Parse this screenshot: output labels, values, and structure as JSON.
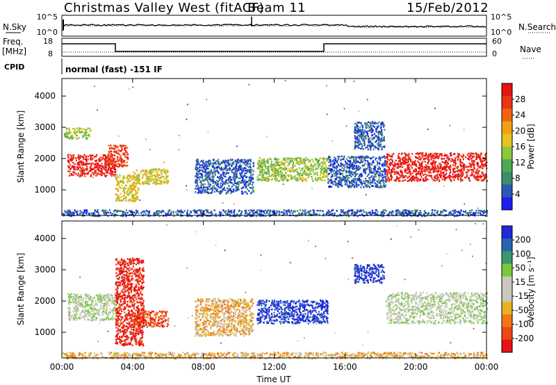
{
  "header": {
    "station": "Christmas Valley West (fitACF)",
    "beam": "Beam 11",
    "date": "15/Feb/2012"
  },
  "summary": {
    "nsky_label": "N.Sky",
    "nsky_ticks": [
      "10^5",
      "10^0"
    ],
    "nsearch_label": "N.Search",
    "nsearch_ticks": [
      "10^5",
      "10^0"
    ],
    "freq_label": "Freq.",
    "freq_unit": "[MHz]",
    "freq_ticks": [
      "18",
      "8"
    ],
    "nave_label": "Nave",
    "nave_ticks": [
      "60",
      "0"
    ],
    "cpid_label": "CPID",
    "cpid_value": "normal (fast) -151 IF"
  },
  "chart_data": [
    {
      "type": "heatmap",
      "name": "power-panel",
      "ylabel": "Slant Range [km]",
      "yticks": [
        1000,
        2000,
        3000,
        4000
      ],
      "ylim": [
        180,
        4560
      ],
      "colorbar": {
        "label": "Power [dB]",
        "ticks": [
          "4",
          "8",
          "12",
          "16",
          "20",
          "24",
          "28"
        ],
        "colors": [
          "#1e1ef0",
          "#2a5ab4",
          "#3c8c6e",
          "#50aa50",
          "#8cc83c",
          "#e6c31e",
          "#f5a014",
          "#f06414",
          "#ee3214",
          "#e61414"
        ]
      },
      "regions": [
        {
          "t0": 0.3,
          "t1": 3.0,
          "r0": 1450,
          "r1": 2150,
          "level": 9
        },
        {
          "t0": 0.1,
          "t1": 1.6,
          "r0": 2650,
          "r1": 3000,
          "level": 4
        },
        {
          "t0": 2.6,
          "t1": 3.7,
          "r0": 1750,
          "r1": 2450,
          "level": 8
        },
        {
          "t0": 3.0,
          "t1": 4.3,
          "r0": 650,
          "r1": 1500,
          "level": 5
        },
        {
          "t0": 4.0,
          "t1": 6.0,
          "r0": 1200,
          "r1": 1700,
          "level": 5
        },
        {
          "t0": 7.5,
          "t1": 10.8,
          "r0": 900,
          "r1": 2000,
          "level": 1
        },
        {
          "t0": 11.0,
          "t1": 15.0,
          "r0": 1300,
          "r1": 2050,
          "level": 4
        },
        {
          "t0": 15.0,
          "t1": 18.3,
          "r0": 1100,
          "r1": 2100,
          "level": 1
        },
        {
          "t0": 16.5,
          "t1": 18.2,
          "r0": 2300,
          "r1": 3200,
          "level": 1
        },
        {
          "t0": 18.3,
          "t1": 24.0,
          "r0": 1300,
          "r1": 2200,
          "level": 9
        },
        {
          "t0": 0.0,
          "t1": 24.0,
          "r0": 180,
          "r1": 380,
          "level": 1
        }
      ]
    },
    {
      "type": "heatmap",
      "name": "velocity-panel",
      "ylabel": "Slant Range [km]",
      "xlabel": "Time UT",
      "xticks": [
        "00:00",
        "04:00",
        "08:00",
        "12:00",
        "16:00",
        "20:00",
        "00:00"
      ],
      "xlim": [
        0,
        24
      ],
      "yticks": [
        1000,
        2000,
        3000,
        4000
      ],
      "ylim": [
        180,
        4560
      ],
      "colorbar": {
        "label": "Velocity [m s⁻¹]",
        "ticks": [
          "200",
          "100",
          "50",
          "15",
          "-15",
          "-50",
          "-100",
          "-200"
        ],
        "colors": [
          "#1e28dc",
          "#2a64b4",
          "#3c966e",
          "#78c83c",
          "#c8c8be",
          "#c8c8be",
          "#e6b41e",
          "#f07814",
          "#ee4614",
          "#e61414"
        ]
      },
      "regions": [
        {
          "t0": 0.3,
          "t1": 3.2,
          "r0": 1400,
          "r1": 2250,
          "level": 4
        },
        {
          "t0": 3.0,
          "t1": 4.6,
          "r0": 600,
          "r1": 3400,
          "level": 9
        },
        {
          "t0": 4.0,
          "t1": 6.0,
          "r0": 1200,
          "r1": 1700,
          "level": 8
        },
        {
          "t0": 7.5,
          "t1": 10.8,
          "r0": 900,
          "r1": 2100,
          "level": 6
        },
        {
          "t0": 11.0,
          "t1": 15.0,
          "r0": 1300,
          "r1": 2050,
          "level": 0
        },
        {
          "t0": 16.5,
          "t1": 18.2,
          "r0": 2600,
          "r1": 3200,
          "level": 0
        },
        {
          "t0": 18.3,
          "t1": 24.0,
          "r0": 1300,
          "r1": 2300,
          "level": 4
        },
        {
          "t0": 0.0,
          "t1": 24.0,
          "r0": 180,
          "r1": 380,
          "level": 6
        }
      ]
    }
  ]
}
